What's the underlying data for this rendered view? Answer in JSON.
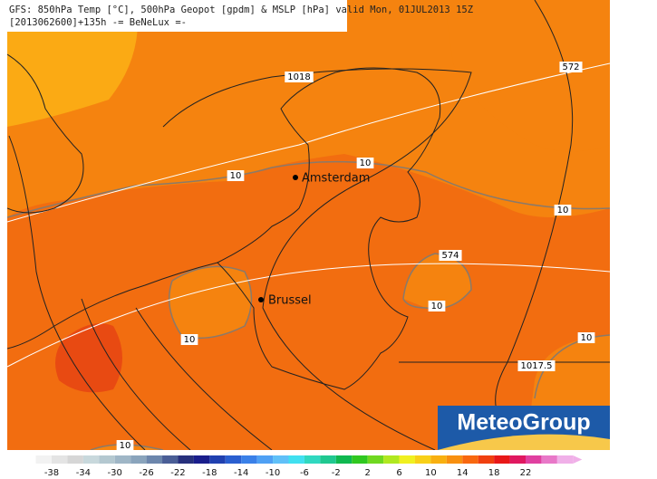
{
  "header": {
    "line1": "GFS: 850hPa Temp [°C], 500hPa Geopot [gpdm] & MSLP [hPa] valid Mon, 01JUL2013 15Z",
    "line2": "[2013062600]+135h -= BeNeLux =-"
  },
  "map": {
    "labels": [
      "1018",
      "572",
      "10",
      "10",
      "10",
      "574",
      "10",
      "10",
      "10",
      "1017.5",
      "10"
    ],
    "cities": [
      "Amsterdam",
      "Brussel"
    ]
  },
  "logo": "MeteoGroup",
  "scale": {
    "ticks": [
      -38,
      -34,
      -30,
      -26,
      -22,
      -18,
      -14,
      -10,
      -6,
      -2,
      2,
      6,
      10,
      14,
      18,
      22
    ]
  }
}
